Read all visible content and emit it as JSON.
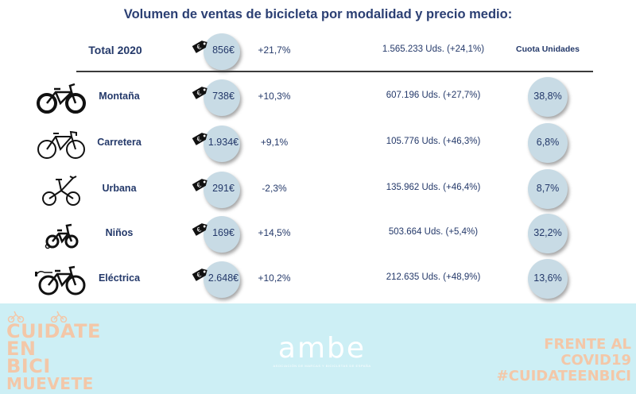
{
  "title": "Volumen de ventas de bicicleta por modalidad y precio medio:",
  "total": {
    "label": "Total 2020",
    "price": "856€",
    "change": "+21,7%",
    "units": "1.565.233 Uds. (+24,1%)",
    "share_header": "Cuota Unidades"
  },
  "rows": [
    {
      "icon": "mountain-bike-icon",
      "label": "Montaña",
      "price": "738€",
      "change": "+10,3%",
      "units": "607.196 Uds. (+27,7%)",
      "share": "38,8%"
    },
    {
      "icon": "road-bike-icon",
      "label": "Carretera",
      "price": "1.934€",
      "change": "+9,1%",
      "units": "105.776 Uds. (+46,3%)",
      "share": "6,8%"
    },
    {
      "icon": "folding-bike-icon",
      "label": "Urbana",
      "price": "291€",
      "change": "-2,3%",
      "units": "135.962 Uds. (+46,4%)",
      "share": "8,7%"
    },
    {
      "icon": "kids-bike-icon",
      "label": "Niños",
      "price": "169€",
      "change": "+14,5%",
      "units": "503.664 Uds. (+5,4%)",
      "share": "32,2%"
    },
    {
      "icon": "electric-bike-icon",
      "label": "Eléctrica",
      "price": "2.648€",
      "change": "+10,2%",
      "units": "212.635 Uds. (+48,9%)",
      "share": "13,6%"
    }
  ],
  "footer": {
    "left_badge": [
      "CUIDATE",
      "EN BICI",
      "MUEVETE"
    ],
    "logo": "ambe",
    "logo_sub": "ASOCIACIÓN DE MARCAS Y BICICLETAS DE ESPAÑA",
    "right_badge": [
      "FRENTE AL COVID19",
      "#CUIDATEENBICI"
    ]
  },
  "colors": {
    "text": "#24396a",
    "bubble": "#c8dbe5",
    "footer_bg": "#cdeff5",
    "badge": "#f3c7a8"
  }
}
